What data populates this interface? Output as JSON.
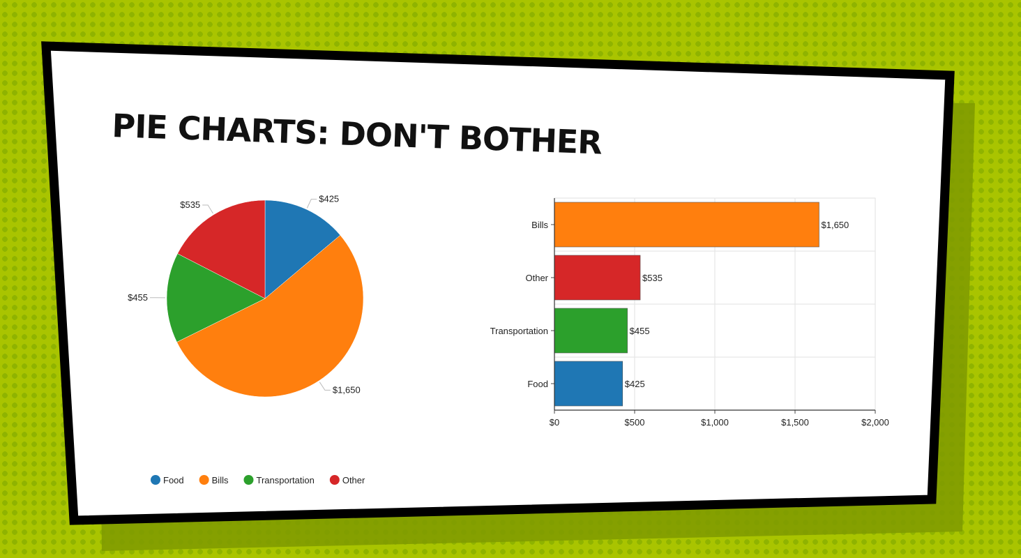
{
  "title": "PIE CHARTS: DON'T BOTHER",
  "chart_data": [
    {
      "type": "pie",
      "slices": [
        {
          "name": "Food",
          "value": 425,
          "label": "$425",
          "color": "#1f77b4"
        },
        {
          "name": "Bills",
          "value": 1650,
          "label": "$1,650",
          "color": "#ff7f0e"
        },
        {
          "name": "Transportation",
          "value": 455,
          "label": "$455",
          "color": "#2ca02c"
        },
        {
          "name": "Other",
          "value": 535,
          "label": "$535",
          "color": "#d62728"
        }
      ],
      "legend": {
        "position": "bottom-left",
        "entries": [
          "Food",
          "Bills",
          "Transportation",
          "Other"
        ]
      }
    },
    {
      "type": "bar",
      "orientation": "horizontal",
      "categories": [
        "Bills",
        "Other",
        "Transportation",
        "Food"
      ],
      "values": [
        1650,
        535,
        455,
        425
      ],
      "value_labels": [
        "$1,650",
        "$535",
        "$455",
        "$425"
      ],
      "colors": [
        "#ff7f0e",
        "#d62728",
        "#2ca02c",
        "#1f77b4"
      ],
      "xlim": [
        0,
        2000
      ],
      "x_ticks": [
        0,
        500,
        1000,
        1500,
        2000
      ],
      "x_tick_labels": [
        "$0",
        "$500",
        "$1,000",
        "$1,500",
        "$2,000"
      ],
      "grid": true
    }
  ]
}
